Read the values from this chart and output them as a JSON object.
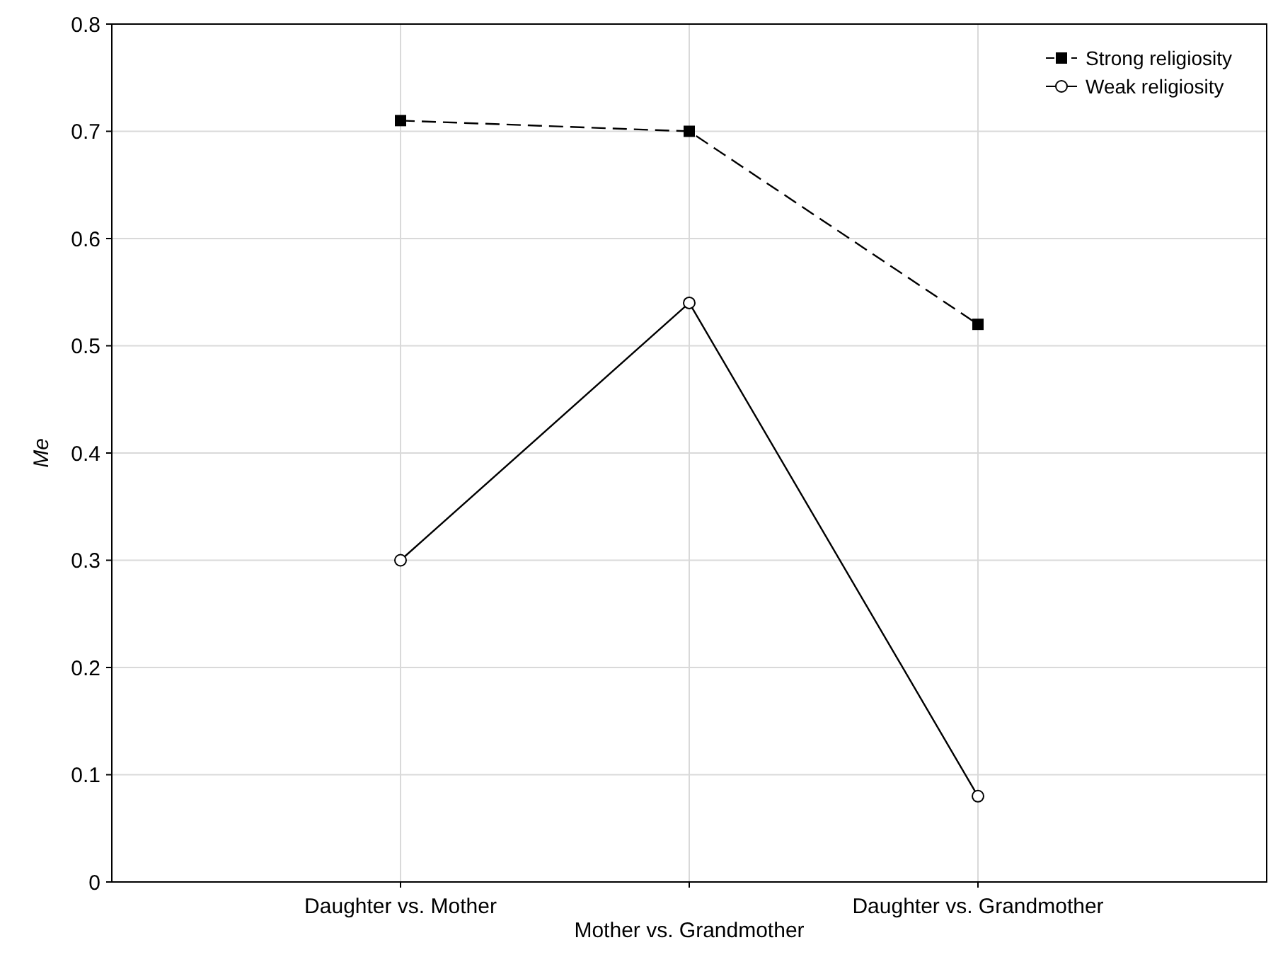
{
  "chart_data": {
    "type": "line",
    "ylabel": "Me",
    "categories": [
      "Daughter vs. Mother",
      "Mother vs. Grandmother",
      "Daughter vs. Grandmother"
    ],
    "series": [
      {
        "name": "Strong religiosity",
        "color": "#000000",
        "values": [
          0.71,
          0.7,
          0.52
        ],
        "marker": "square",
        "line_style": "dashed"
      },
      {
        "name": "Weak religiosity",
        "color": "#000000",
        "values": [
          0.3,
          0.54,
          0.08
        ],
        "marker": "circle",
        "line_style": "solid"
      }
    ],
    "ylim": [
      0,
      0.8
    ],
    "yticks": [
      0,
      0.1,
      0.2,
      0.3,
      0.4,
      0.5,
      0.6,
      0.7,
      0.8
    ],
    "grid": true,
    "legend": "top right"
  }
}
